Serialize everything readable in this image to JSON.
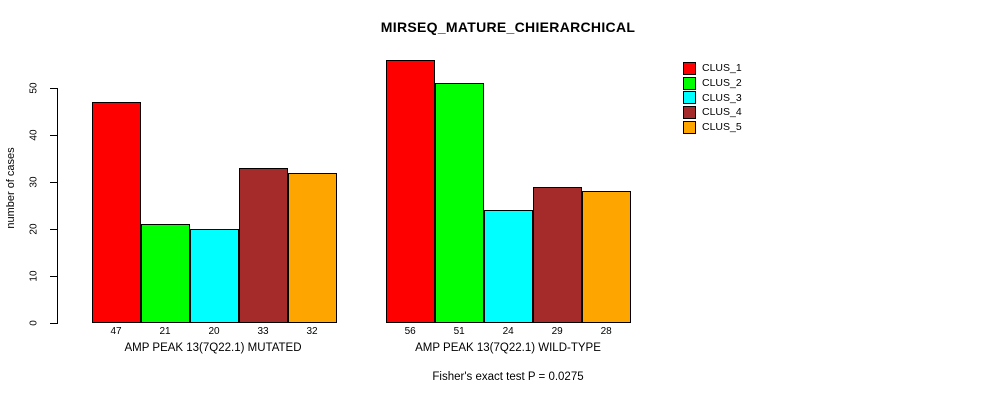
{
  "chart_data": {
    "type": "bar",
    "title": "MIRSEQ_MATURE_CHIERARCHICAL",
    "xlabel": "",
    "ylabel": "number of cases",
    "y_axis": {
      "ticks": [
        0,
        10,
        20,
        30,
        40,
        50
      ],
      "range": [
        0,
        56
      ],
      "grid": false
    },
    "categories": [
      "AMP PEAK 13(7Q22.1) MUTATED",
      "AMP PEAK 13(7Q22.1) WILD-TYPE"
    ],
    "series": [
      {
        "name": "CLUS_1",
        "color": "#FF0000",
        "values": [
          47,
          56
        ]
      },
      {
        "name": "CLUS_2",
        "color": "#00FF00",
        "values": [
          21,
          51
        ]
      },
      {
        "name": "CLUS_3",
        "color": "#00FFFF",
        "values": [
          20,
          24
        ]
      },
      {
        "name": "CLUS_4",
        "color": "#A52A2A",
        "values": [
          33,
          29
        ]
      },
      {
        "name": "CLUS_5",
        "color": "#FFA500",
        "values": [
          32,
          28
        ]
      }
    ],
    "bar_value_labels_shown": true,
    "legend": {
      "position": "top-right"
    },
    "annotation": "Fisher's exact test P = 0.0275"
  }
}
